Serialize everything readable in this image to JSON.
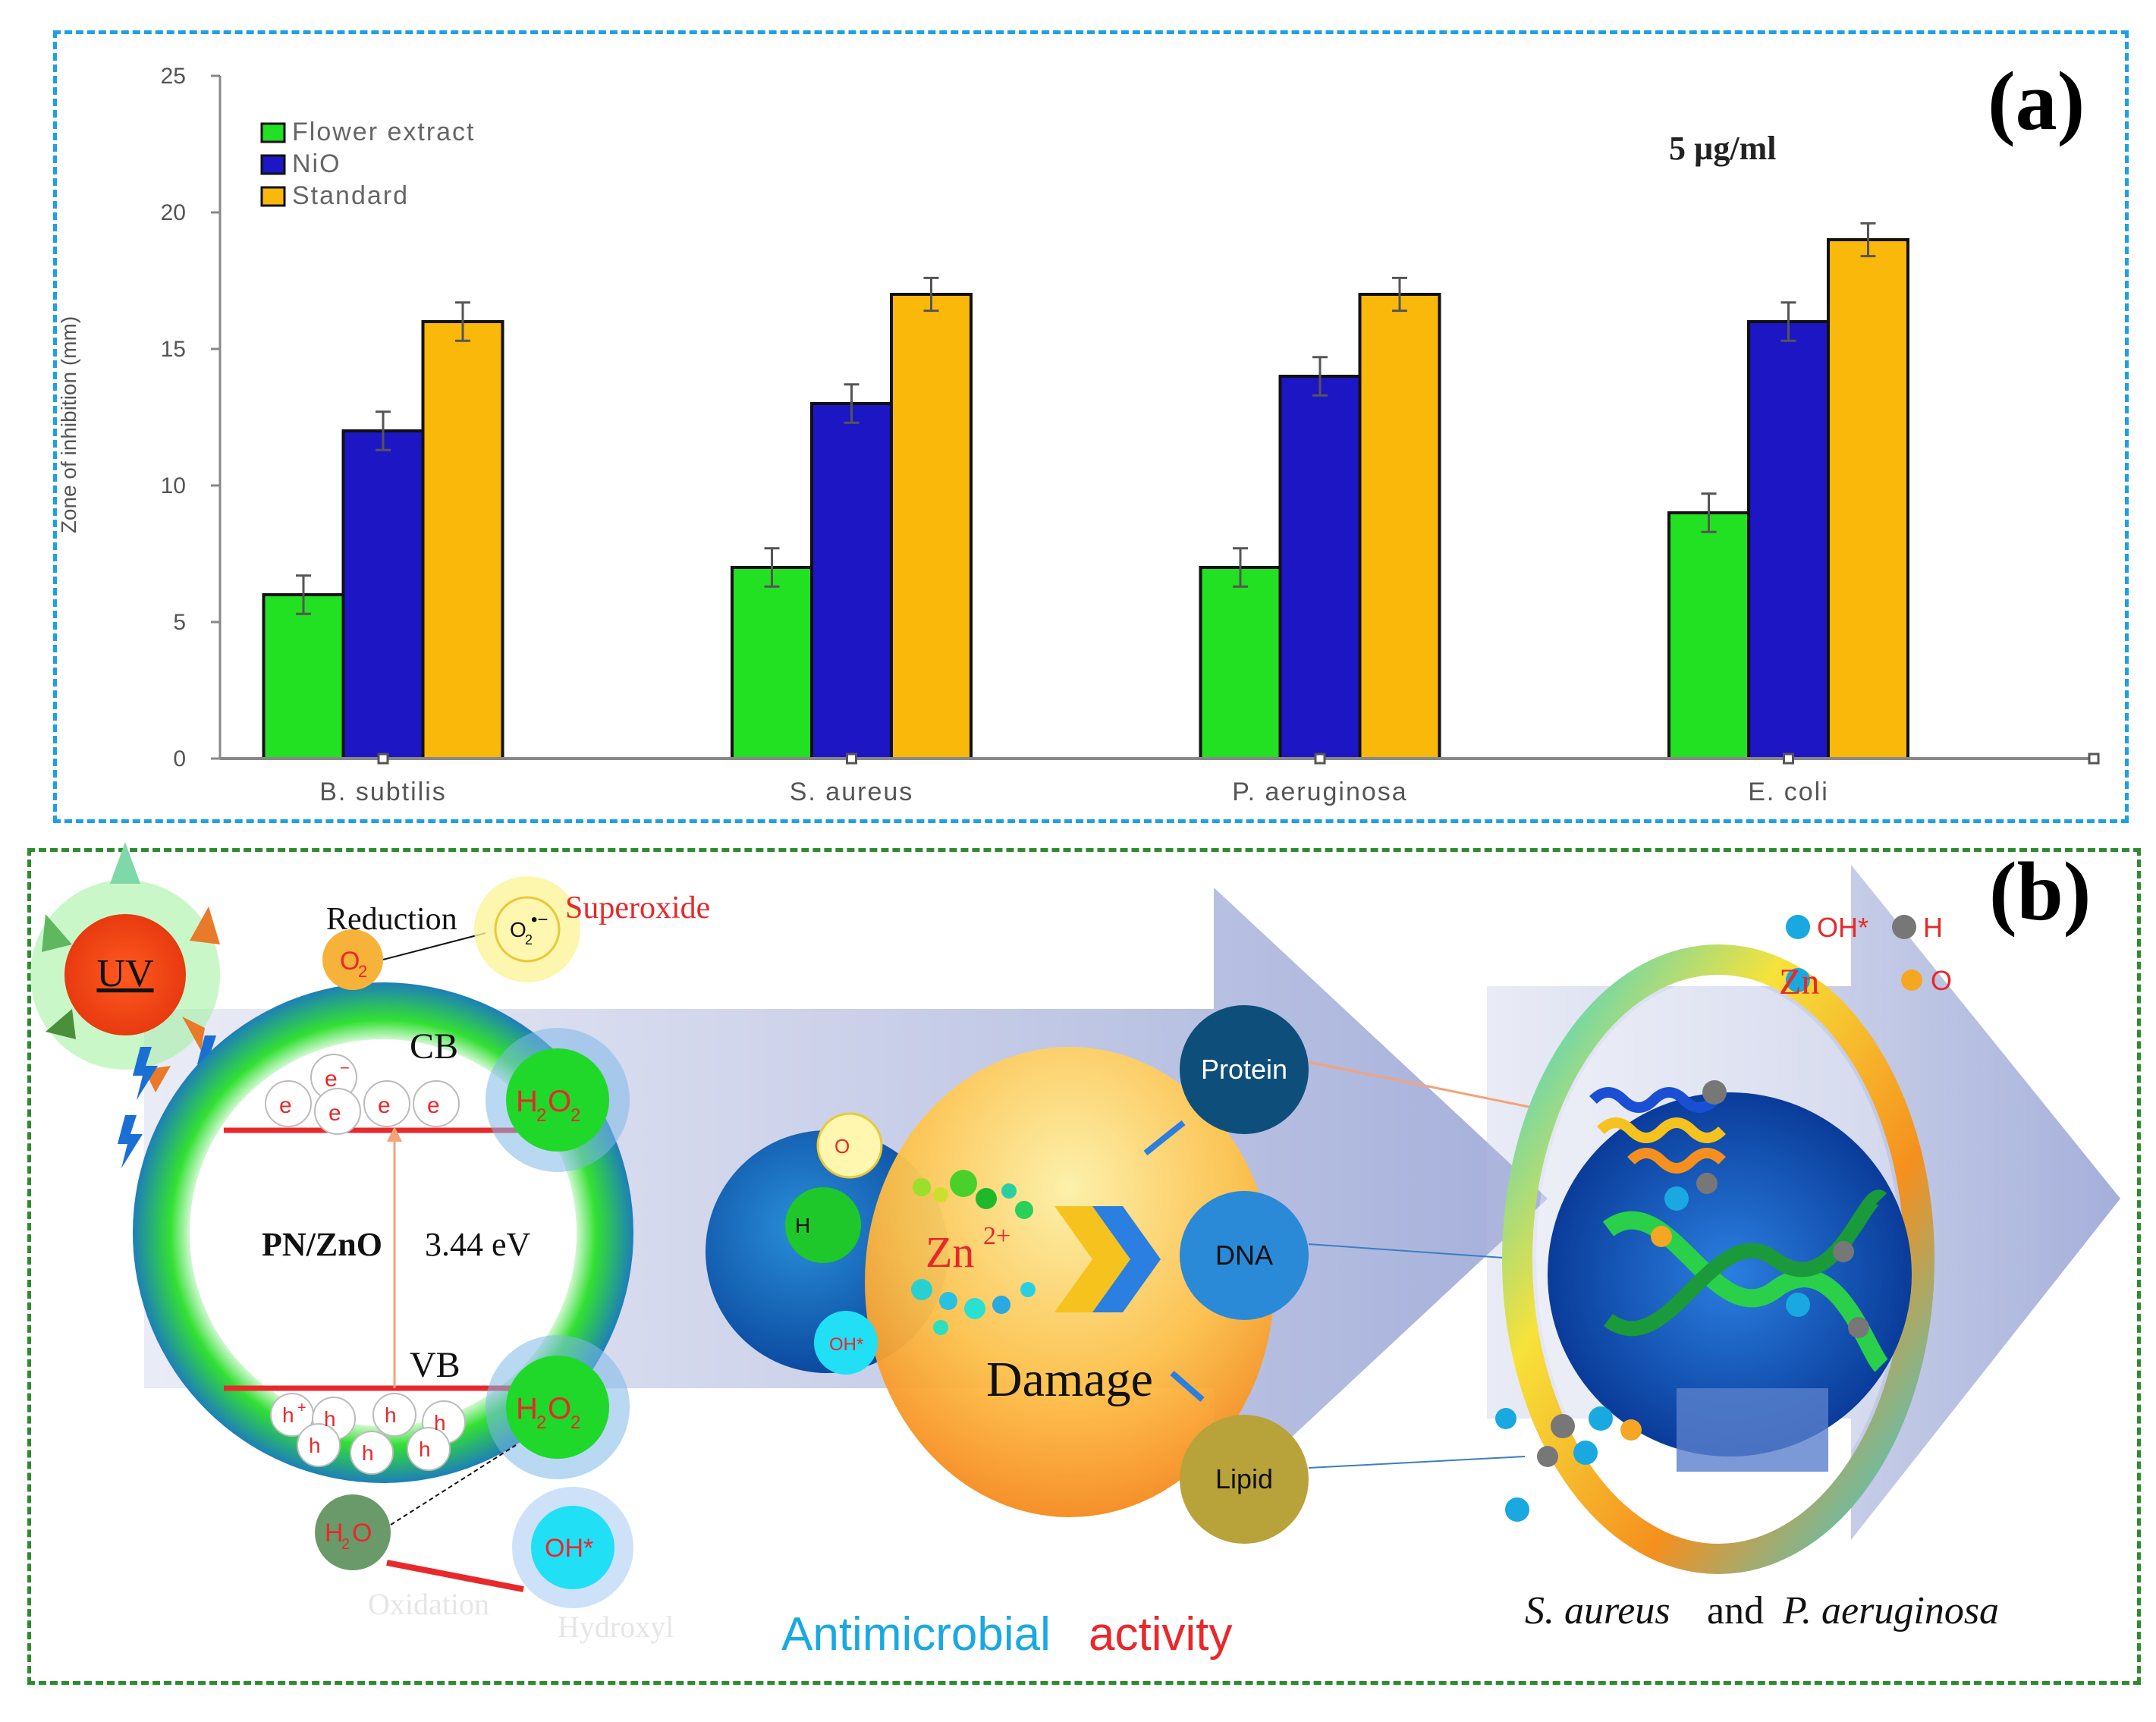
{
  "panel_a": {
    "label": "(a)",
    "concentration": "5 µg/ml"
  },
  "panel_b": {
    "label": "(b)",
    "uv": "UV",
    "reduction": "Reduction",
    "superoxide": "Superoxide",
    "o2": "O",
    "o2_sub": "2",
    "o2_radical": "O",
    "o2_radical_sub": "2",
    "o2_radical_sup": "•−",
    "h2o2": "H",
    "h2o2_sub1": "2",
    "h2o2_mid": "O",
    "h2o2_sub2": "2",
    "cb": "CB",
    "vb": "VB",
    "electron": "e",
    "electron_sup": "−",
    "hole": "h",
    "hole_sup": "+",
    "pn_zno": "PN/ZnO",
    "band_gap": "3.44 eV",
    "h2o": "H",
    "h2o_sub": "2",
    "h2o_o": "O",
    "oh": "OH*",
    "oxidation": "Oxidation",
    "hydroxyl": "Hydroxyl",
    "zn": "Zn",
    "zn_sup": "2+",
    "damage": "Damage",
    "protein": "Protein",
    "dna": "DNA",
    "lipid": "Lipid",
    "legend_oh": "OH*",
    "legend_h2o2": "H",
    "legend_zn": "Zn",
    "legend_o2": "O",
    "caption_part1": "Antimicrobial",
    "caption_part2": "activity",
    "bacteria_1": "S. aureus",
    "bacteria_and": "and",
    "bacteria_2": "P. aeruginosa",
    "colors": {
      "red": "#e8282a",
      "cyan": "#19a9e0",
      "green": "#1fce22",
      "orange": "#f5a623"
    }
  },
  "chart_data": {
    "type": "bar",
    "title": "",
    "xlabel": "",
    "ylabel": "Zone of inhibition (mm)",
    "ylim": [
      0,
      25
    ],
    "yticks": [
      0,
      5,
      10,
      15,
      20,
      25
    ],
    "categories": [
      "B. subtilis",
      "S. aureus",
      "P. aeruginosa",
      "E. coli"
    ],
    "series": [
      {
        "name": "Flower extract",
        "color": "#22e022",
        "values": [
          6,
          7,
          7,
          9
        ],
        "errors": [
          0.7,
          0.7,
          0.7,
          0.7
        ]
      },
      {
        "name": "NiO",
        "color": "#1c16c4",
        "values": [
          12,
          13,
          14,
          16
        ],
        "errors": [
          0.7,
          0.7,
          0.7,
          0.7
        ]
      },
      {
        "name": "Standard",
        "color": "#f9b80a",
        "values": [
          16,
          17,
          17,
          19
        ],
        "errors": [
          0.7,
          0.6,
          0.6,
          0.6
        ]
      }
    ],
    "legend_position": "top-left"
  }
}
